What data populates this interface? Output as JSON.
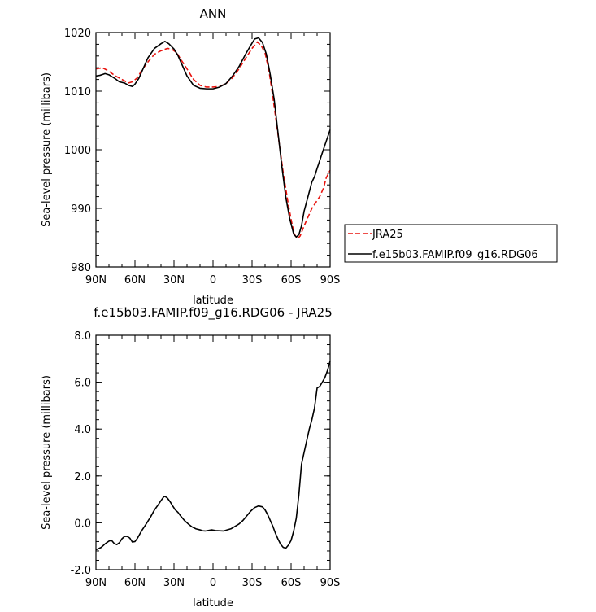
{
  "chart_data": [
    {
      "type": "line",
      "title": "ANN",
      "xlabel": "latitude",
      "ylabel": "Sea-level pressure (millibars)",
      "xlim": [
        90,
        -90
      ],
      "ylim": [
        980,
        1020
      ],
      "x_ticks": [
        90,
        60,
        30,
        0,
        -30,
        -60,
        -90
      ],
      "x_tick_labels": [
        "90N",
        "60N",
        "30N",
        "0",
        "30S",
        "60S",
        "90S"
      ],
      "y_ticks": [
        980,
        990,
        1000,
        1010,
        1020
      ],
      "y_tick_labels": [
        "980",
        "990",
        "1000",
        "1010",
        "1020"
      ],
      "legend_position": "right",
      "series": [
        {
          "name": "JRA25",
          "color": "#e8130e",
          "dash": "dashed",
          "points": [
            [
              90,
              1013.8
            ],
            [
              85,
              1014.0
            ],
            [
              80,
              1013.4
            ],
            [
              75,
              1012.6
            ],
            [
              70,
              1012.0
            ],
            [
              65,
              1011.4
            ],
            [
              62,
              1011.6
            ],
            [
              58,
              1012.3
            ],
            [
              55,
              1013.5
            ],
            [
              50,
              1015.0
            ],
            [
              45,
              1016.3
            ],
            [
              40,
              1016.9
            ],
            [
              35,
              1017.3
            ],
            [
              32,
              1017.2
            ],
            [
              28,
              1016.6
            ],
            [
              25,
              1015.5
            ],
            [
              20,
              1013.8
            ],
            [
              15,
              1012.0
            ],
            [
              10,
              1011.0
            ],
            [
              5,
              1010.7
            ],
            [
              0,
              1010.7
            ],
            [
              -5,
              1010.8
            ],
            [
              -10,
              1011.3
            ],
            [
              -15,
              1012.3
            ],
            [
              -20,
              1013.8
            ],
            [
              -25,
              1015.6
            ],
            [
              -30,
              1017.3
            ],
            [
              -34,
              1018.4
            ],
            [
              -37,
              1017.8
            ],
            [
              -40,
              1016.5
            ],
            [
              -43,
              1013.5
            ],
            [
              -46,
              1009.0
            ],
            [
              -50,
              1002.5
            ],
            [
              -54,
              996.0
            ],
            [
              -58,
              990.5
            ],
            [
              -61,
              987.0
            ],
            [
              -63,
              985.4
            ],
            [
              -65,
              984.8
            ],
            [
              -67,
              985.3
            ],
            [
              -70,
              987.0
            ],
            [
              -73,
              988.5
            ],
            [
              -76,
              990.0
            ],
            [
              -79,
              991.0
            ],
            [
              -82,
              992.0
            ],
            [
              -85,
              993.5
            ],
            [
              -87,
              995.2
            ],
            [
              -90,
              996.5
            ]
          ]
        },
        {
          "name": "f.e15b03.FAMIP.f09_g16.RDG06",
          "color": "#000000",
          "dash": "solid",
          "points": [
            [
              90,
              1012.6
            ],
            [
              87,
              1012.7
            ],
            [
              83,
              1013.0
            ],
            [
              80,
              1012.8
            ],
            [
              75,
              1012.1
            ],
            [
              72,
              1011.6
            ],
            [
              68,
              1011.4
            ],
            [
              65,
              1011.0
            ],
            [
              62,
              1010.8
            ],
            [
              60,
              1011.2
            ],
            [
              57,
              1012.2
            ],
            [
              54,
              1013.7
            ],
            [
              50,
              1015.7
            ],
            [
              45,
              1017.3
            ],
            [
              40,
              1018.1
            ],
            [
              37,
              1018.5
            ],
            [
              34,
              1018.1
            ],
            [
              30,
              1017.2
            ],
            [
              27,
              1016.1
            ],
            [
              24,
              1014.6
            ],
            [
              20,
              1012.6
            ],
            [
              15,
              1011.0
            ],
            [
              10,
              1010.5
            ],
            [
              5,
              1010.4
            ],
            [
              0,
              1010.4
            ],
            [
              -5,
              1010.7
            ],
            [
              -10,
              1011.3
            ],
            [
              -15,
              1012.6
            ],
            [
              -20,
              1014.2
            ],
            [
              -25,
              1016.3
            ],
            [
              -30,
              1018.2
            ],
            [
              -32,
              1018.9
            ],
            [
              -35,
              1019.1
            ],
            [
              -38,
              1018.3
            ],
            [
              -41,
              1016.3
            ],
            [
              -44,
              1012.8
            ],
            [
              -47,
              1008.6
            ],
            [
              -50,
              1002.8
            ],
            [
              -53,
              997.0
            ],
            [
              -56,
              991.8
            ],
            [
              -59,
              988.2
            ],
            [
              -62,
              985.6
            ],
            [
              -64,
              985.1
            ],
            [
              -66,
              985.5
            ],
            [
              -68,
              987.0
            ],
            [
              -70,
              989.5
            ],
            [
              -73,
              992.0
            ],
            [
              -76,
              994.5
            ],
            [
              -78,
              995.4
            ],
            [
              -80,
              996.8
            ],
            [
              -83,
              998.8
            ],
            [
              -86,
              1000.8
            ],
            [
              -88,
              1002.1
            ],
            [
              -90,
              1003.4
            ]
          ]
        }
      ]
    },
    {
      "type": "line",
      "title": "f.e15b03.FAMIP.f09_g16.RDG06 - JRA25",
      "xlabel": "latitude",
      "ylabel": "Sea-level pressure (millibars)",
      "xlim": [
        90,
        -90
      ],
      "ylim": [
        -2,
        8
      ],
      "x_ticks": [
        90,
        60,
        30,
        0,
        -30,
        -60,
        -90
      ],
      "x_tick_labels": [
        "90N",
        "60N",
        "30N",
        "0",
        "30S",
        "60S",
        "90S"
      ],
      "y_ticks": [
        -2,
        0,
        2,
        4,
        6,
        8
      ],
      "y_tick_labels": [
        "-2.0",
        "0.0",
        "2.0",
        "4.0",
        "6.0",
        "8.0"
      ],
      "series": [
        {
          "color": "#000000",
          "dash": "solid",
          "points": [
            [
              90,
              -1.15
            ],
            [
              88,
              -1.1
            ],
            [
              86,
              -1.05
            ],
            [
              83,
              -0.9
            ],
            [
              80,
              -0.78
            ],
            [
              78,
              -0.75
            ],
            [
              76,
              -0.88
            ],
            [
              74,
              -0.93
            ],
            [
              72,
              -0.85
            ],
            [
              70,
              -0.68
            ],
            [
              68,
              -0.58
            ],
            [
              66,
              -0.58
            ],
            [
              64,
              -0.65
            ],
            [
              62,
              -0.82
            ],
            [
              60,
              -0.8
            ],
            [
              58,
              -0.65
            ],
            [
              55,
              -0.35
            ],
            [
              52,
              -0.1
            ],
            [
              48,
              0.25
            ],
            [
              45,
              0.55
            ],
            [
              42,
              0.78
            ],
            [
              40,
              0.95
            ],
            [
              38,
              1.1
            ],
            [
              37,
              1.13
            ],
            [
              35,
              1.05
            ],
            [
              33,
              0.9
            ],
            [
              31,
              0.72
            ],
            [
              29,
              0.55
            ],
            [
              27,
              0.45
            ],
            [
              25,
              0.3
            ],
            [
              22,
              0.1
            ],
            [
              19,
              -0.05
            ],
            [
              16,
              -0.18
            ],
            [
              13,
              -0.26
            ],
            [
              10,
              -0.3
            ],
            [
              8,
              -0.34
            ],
            [
              6,
              -0.35
            ],
            [
              4,
              -0.33
            ],
            [
              1,
              -0.3
            ],
            [
              -2,
              -0.33
            ],
            [
              -5,
              -0.34
            ],
            [
              -8,
              -0.35
            ],
            [
              -11,
              -0.3
            ],
            [
              -14,
              -0.25
            ],
            [
              -17,
              -0.15
            ],
            [
              -20,
              -0.05
            ],
            [
              -23,
              0.1
            ],
            [
              -26,
              0.3
            ],
            [
              -29,
              0.5
            ],
            [
              -32,
              0.65
            ],
            [
              -35,
              0.72
            ],
            [
              -38,
              0.68
            ],
            [
              -40,
              0.55
            ],
            [
              -42,
              0.35
            ],
            [
              -44,
              0.1
            ],
            [
              -46,
              -0.15
            ],
            [
              -48,
              -0.45
            ],
            [
              -50,
              -0.7
            ],
            [
              -52,
              -0.92
            ],
            [
              -54,
              -1.05
            ],
            [
              -56,
              -1.08
            ],
            [
              -58,
              -0.95
            ],
            [
              -60,
              -0.75
            ],
            [
              -62,
              -0.35
            ],
            [
              -64,
              0.2
            ],
            [
              -66,
              1.2
            ],
            [
              -68,
              2.5
            ],
            [
              -70,
              3.0
            ],
            [
              -72,
              3.5
            ],
            [
              -74,
              4.0
            ],
            [
              -76,
              4.4
            ],
            [
              -78,
              4.9
            ],
            [
              -80,
              5.75
            ],
            [
              -82,
              5.82
            ],
            [
              -84,
              6.0
            ],
            [
              -86,
              6.2
            ],
            [
              -88,
              6.5
            ],
            [
              -90,
              6.9
            ]
          ]
        }
      ]
    }
  ]
}
